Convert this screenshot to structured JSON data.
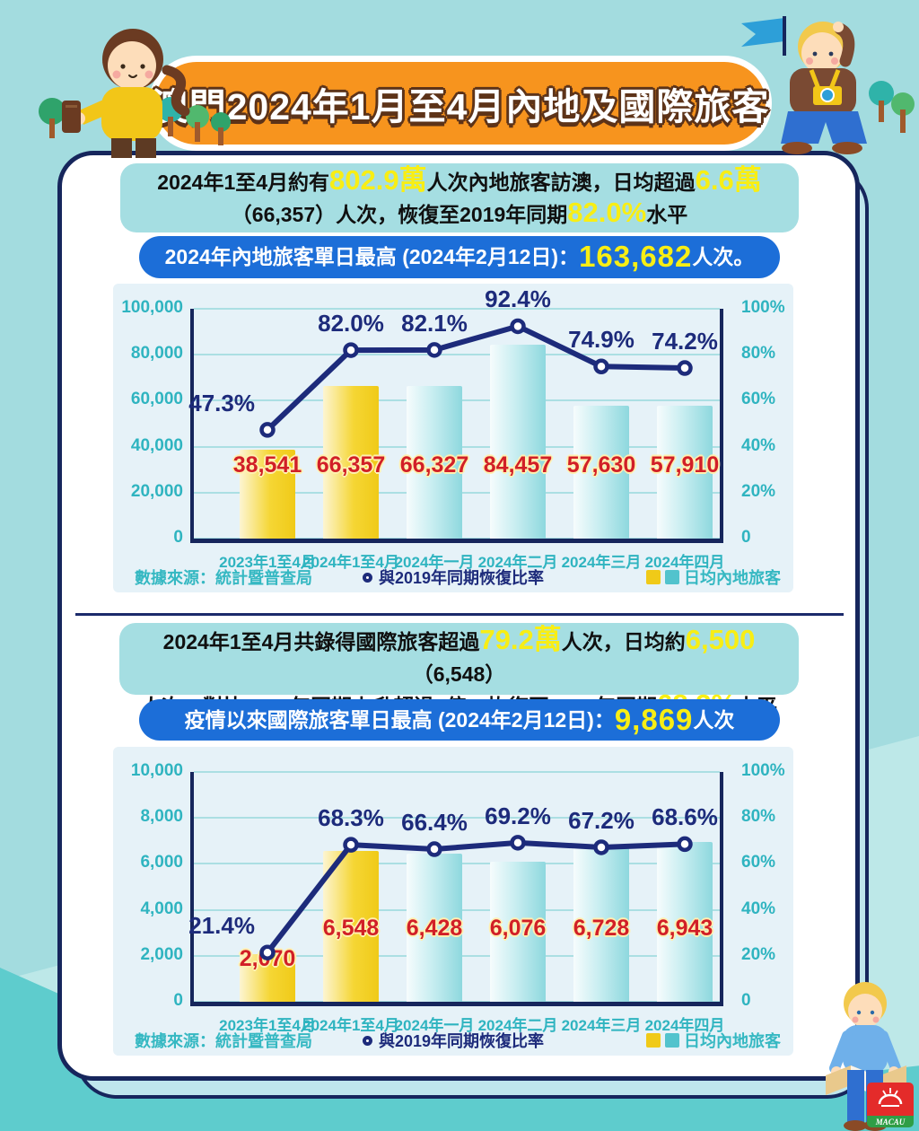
{
  "title": "澳門2024年1月至4月內地及國際旅客",
  "logo": {
    "text": "MACAU"
  },
  "colors": {
    "background_teal": "#a3dcdf",
    "accent_orange": "#f7941e",
    "banner_blue": "#1c6ed8",
    "summary_teal": "#a5dee2",
    "highlight_yellow": "#f8ee14",
    "line_navy": "#1d2b7b",
    "value_red": "#d11f27",
    "bar_yellow": "#f0ca18",
    "bar_teal": "#8ed8de",
    "axis_teal": "#2fb4c0"
  },
  "sections": [
    {
      "summary_segments": [
        {
          "t": "2024年1至4月約有"
        },
        {
          "t": "802.9萬",
          "hl": true
        },
        {
          "t": "人次內地旅客訪澳，日均超過"
        },
        {
          "t": "6.6萬",
          "hl": true
        },
        {
          "br": true
        },
        {
          "t": "（66,357）人次，恢復至2019年同期"
        },
        {
          "t": "82.0%",
          "hl": true
        },
        {
          "t": "水平"
        }
      ],
      "banner_segments": [
        {
          "t": "2024年內地旅客單日最高 (2024年2月12日)："
        },
        {
          "t": "163,682",
          "hl": true
        },
        {
          "t": "人次。"
        }
      ],
      "source": "數據來源：統計暨普查局",
      "legend": {
        "line": "與2019年同期恢復比率",
        "bars": "日均內地旅客"
      }
    },
    {
      "summary_segments": [
        {
          "t": "2024年1至4月共錄得國際旅客超過"
        },
        {
          "t": "79.2萬",
          "hl": true
        },
        {
          "t": "人次，日均約"
        },
        {
          "t": "6,500",
          "hl": true
        },
        {
          "t": "（6,548）"
        },
        {
          "br": true
        },
        {
          "t": "人次，對比2023年同期上升超過2倍，恢復至2019年同期"
        },
        {
          "t": "68.3%",
          "hl": true
        },
        {
          "t": "水平"
        }
      ],
      "banner_segments": [
        {
          "t": "疫情以來國際旅客單日最高 (2024年2月12日)："
        },
        {
          "t": "9,869",
          "hl": true
        },
        {
          "t": "人次"
        }
      ],
      "source": "數據來源：統計暨普查局",
      "legend": {
        "line": "與2019年同期恢復比率",
        "bars": "日均內地旅客"
      }
    }
  ],
  "chart_data": [
    {
      "type": "bar",
      "subtype": "bar+line",
      "categories": [
        "2023年1至4月",
        "2024年1至4月",
        "2024年一月",
        "2024年二月",
        "2024年三月",
        "2024年四月"
      ],
      "series": [
        {
          "name": "日均內地旅客",
          "type": "bar",
          "values": [
            38541,
            66357,
            66327,
            84457,
            57630,
            57910
          ],
          "labels": [
            "38,541",
            "66,357",
            "66,327",
            "84,457",
            "57,630",
            "57,910"
          ],
          "highlight_indices": [
            0,
            1
          ]
        },
        {
          "name": "與2019年同期恢復比率",
          "type": "line",
          "values_pct": [
            47.3,
            82.0,
            82.1,
            92.4,
            74.9,
            74.2
          ],
          "labels": [
            "47.3%",
            "82.0%",
            "82.1%",
            "92.4%",
            "74.9%",
            "74.2%"
          ]
        }
      ],
      "y_left": {
        "max": 100000,
        "ticks": [
          "100,000",
          "80,000",
          "60,000",
          "40,000",
          "20,000",
          "0"
        ]
      },
      "y_right": {
        "max": 100,
        "ticks": [
          "100%",
          "80%",
          "60%",
          "40%",
          "20%",
          "0"
        ]
      },
      "grid": true,
      "legend_position": "bottom"
    },
    {
      "type": "bar",
      "subtype": "bar+line",
      "categories": [
        "2023年1至4月",
        "2024年1至4月",
        "2024年一月",
        "2024年二月",
        "2024年三月",
        "2024年四月"
      ],
      "series": [
        {
          "name": "日均內地旅客",
          "type": "bar",
          "values": [
            2070,
            6548,
            6428,
            6076,
            6728,
            6943
          ],
          "labels": [
            "2,070",
            "6,548",
            "6,428",
            "6,076",
            "6,728",
            "6,943"
          ],
          "highlight_indices": [
            0,
            1
          ]
        },
        {
          "name": "與2019年同期恢復比率",
          "type": "line",
          "values_pct": [
            21.4,
            68.3,
            66.4,
            69.2,
            67.2,
            68.6
          ],
          "labels": [
            "21.4%",
            "68.3%",
            "66.4%",
            "69.2%",
            "67.2%",
            "68.6%"
          ]
        }
      ],
      "y_left": {
        "max": 10000,
        "ticks": [
          "10,000",
          "8,000",
          "6,000",
          "4,000",
          "2,000",
          "0"
        ]
      },
      "y_right": {
        "max": 100,
        "ticks": [
          "100%",
          "80%",
          "60%",
          "40%",
          "20%",
          "0"
        ]
      },
      "grid": true,
      "legend_position": "bottom"
    }
  ]
}
